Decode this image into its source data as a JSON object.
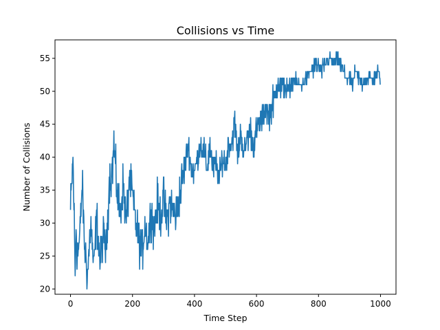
{
  "chart_data": {
    "type": "line",
    "title": "Collisions vs Time",
    "xlabel": "Time Step",
    "ylabel": "Number of Collisions",
    "xlim": [
      -50,
      1050
    ],
    "ylim": [
      19.2,
      57.8
    ],
    "xticks": [
      0,
      200,
      400,
      600,
      800,
      1000
    ],
    "yticks": [
      20,
      25,
      30,
      35,
      40,
      45,
      50,
      55
    ],
    "grid": false,
    "line_color": "#1f77b4",
    "n_points": 1000,
    "anchors": [
      [
        0,
        32
      ],
      [
        5,
        37
      ],
      [
        8,
        40
      ],
      [
        12,
        31
      ],
      [
        15,
        21
      ],
      [
        18,
        30
      ],
      [
        22,
        25
      ],
      [
        30,
        28
      ],
      [
        38,
        36
      ],
      [
        45,
        27
      ],
      [
        55,
        22
      ],
      [
        65,
        30
      ],
      [
        75,
        23
      ],
      [
        85,
        31
      ],
      [
        95,
        24
      ],
      [
        105,
        28
      ],
      [
        115,
        26
      ],
      [
        125,
        36
      ],
      [
        135,
        38
      ],
      [
        140,
        42
      ],
      [
        148,
        36
      ],
      [
        160,
        31
      ],
      [
        170,
        36
      ],
      [
        180,
        30
      ],
      [
        190,
        37
      ],
      [
        200,
        34
      ],
      [
        210,
        30
      ],
      [
        220,
        28
      ],
      [
        230,
        25
      ],
      [
        240,
        30
      ],
      [
        250,
        27
      ],
      [
        260,
        32
      ],
      [
        270,
        29
      ],
      [
        280,
        33
      ],
      [
        290,
        31
      ],
      [
        300,
        34
      ],
      [
        310,
        30
      ],
      [
        320,
        33
      ],
      [
        330,
        32
      ],
      [
        340,
        31
      ],
      [
        355,
        35
      ],
      [
        370,
        39
      ],
      [
        380,
        42
      ],
      [
        390,
        38
      ],
      [
        400,
        38
      ],
      [
        410,
        40
      ],
      [
        420,
        42
      ],
      [
        430,
        41
      ],
      [
        440,
        38
      ],
      [
        450,
        42
      ],
      [
        460,
        38
      ],
      [
        470,
        39
      ],
      [
        480,
        37
      ],
      [
        490,
        40
      ],
      [
        500,
        39
      ],
      [
        510,
        42
      ],
      [
        520,
        42
      ],
      [
        530,
        45
      ],
      [
        540,
        40
      ],
      [
        550,
        44
      ],
      [
        560,
        40
      ],
      [
        570,
        43
      ],
      [
        580,
        44
      ],
      [
        590,
        42
      ],
      [
        600,
        44
      ],
      [
        610,
        45
      ],
      [
        620,
        46
      ],
      [
        630,
        48
      ],
      [
        640,
        46
      ],
      [
        650,
        48
      ],
      [
        660,
        49
      ],
      [
        670,
        52
      ],
      [
        680,
        50
      ],
      [
        690,
        51
      ],
      [
        700,
        50
      ],
      [
        710,
        51
      ],
      [
        720,
        52
      ],
      [
        730,
        51
      ],
      [
        740,
        51
      ],
      [
        750,
        51
      ],
      [
        760,
        52
      ],
      [
        770,
        53
      ],
      [
        780,
        53
      ],
      [
        790,
        54
      ],
      [
        800,
        54
      ],
      [
        810,
        53
      ],
      [
        820,
        54
      ],
      [
        830,
        55
      ],
      [
        840,
        55
      ],
      [
        850,
        54
      ],
      [
        860,
        55
      ],
      [
        870,
        54
      ],
      [
        880,
        53
      ],
      [
        890,
        52
      ],
      [
        900,
        52
      ],
      [
        910,
        51
      ],
      [
        920,
        53
      ],
      [
        930,
        52
      ],
      [
        940,
        51
      ],
      [
        950,
        52
      ],
      [
        960,
        52
      ],
      [
        970,
        52
      ],
      [
        980,
        52
      ],
      [
        990,
        53
      ],
      [
        1000,
        52
      ]
    ]
  }
}
